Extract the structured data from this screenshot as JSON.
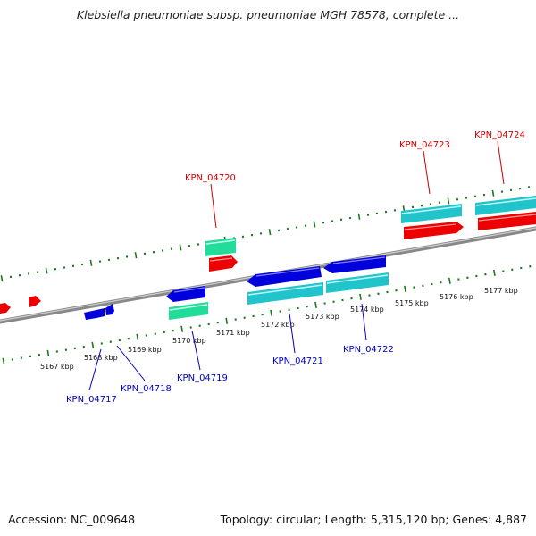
{
  "title": "Klebsiella pneumoniae subsp. pneumoniae MGH 78578, complete ...",
  "footer": {
    "accession": "Accession: NC_009648",
    "summary": "Topology: circular; Length: 5,315,120 bp; Genes: 4,887"
  },
  "colors": {
    "backbone": "#888888",
    "tick": "#1a7a1a",
    "forward_label": "#cc0000",
    "reverse_label": "#0000cc",
    "cds_forward": "#ee0000",
    "cds_reverse": "#0000dd",
    "feature_cyan": "#22c4cc",
    "feature_green": "#22dd99"
  },
  "ruler": {
    "unit": "kbp",
    "labels": [
      "5167 kbp",
      "5168 kbp",
      "5169 kbp",
      "5170 kbp",
      "5171 kbp",
      "5172 kbp",
      "5173 kbp",
      "5174 kbp",
      "5175 kbp",
      "5176 kbp",
      "5177 kbp"
    ]
  },
  "genes": {
    "forward": [
      "KPN_04720",
      "KPN_04723",
      "KPN_04724"
    ],
    "reverse": [
      "KPN_04717",
      "KPN_04718",
      "KPN_04719",
      "KPN_04721",
      "KPN_04722"
    ]
  }
}
